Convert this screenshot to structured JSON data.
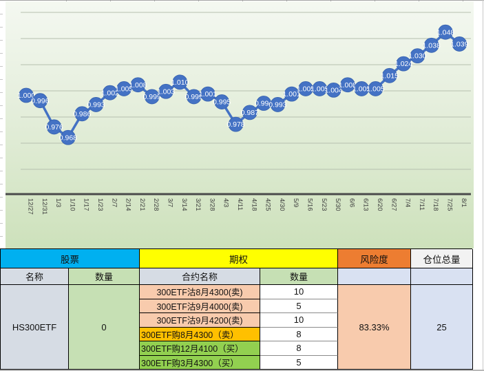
{
  "chart_data": {
    "type": "line",
    "title": "",
    "x": [
      "12/27",
      "12/31",
      "1/3",
      "1/10",
      "1/17",
      "1/23",
      "2/7",
      "2/14",
      "2/21",
      "2/28",
      "3/7",
      "3/14",
      "3/21",
      "3/28",
      "4/3",
      "4/11",
      "4/18",
      "4/25",
      "4/30",
      "5/9",
      "5/16",
      "5/23",
      "5/30",
      "6/6",
      "6/13",
      "6/20",
      "6/27",
      "7/4",
      "7/11",
      "7/18",
      "7/25",
      "8/1"
    ],
    "values": [
      1.0,
      0.996,
      0.976,
      0.968,
      0.986,
      0.993,
      1.002,
      1.005,
      1.008,
      0.999,
      1.003,
      1.01,
      0.999,
      1.001,
      0.995,
      0.978,
      0.987,
      0.994,
      0.993,
      1.001,
      1.005,
      1.005,
      1.004,
      1.008,
      1.005,
      1.005,
      1.015,
      1.024,
      1.03,
      1.038,
      1.048,
      1.039
    ],
    "point_labels": "on-marker",
    "ylim": [
      0.925,
      1.063
    ],
    "grid": "horizontal",
    "legend": "none",
    "line_color": "#4472C4",
    "marker_color": "#4472C4",
    "marker_edge_color": "#3561ae",
    "label_text_color": "#FFFFFF",
    "gridline_color": "#b6bfae",
    "axis_line_color": "#4a4a4a",
    "tick_label_color": "#3d3d3d"
  },
  "table": {
    "header": {
      "stock": "股票",
      "option": "期权",
      "risk": "风险度",
      "position_total": "仓位总量"
    },
    "subheader": {
      "name": "名称",
      "qty": "数量",
      "contract_name": "合约名称",
      "contract_qty": "数量"
    },
    "stock": {
      "name": "HS300ETF",
      "qty": "0"
    },
    "contracts": [
      {
        "name": "300ETF沽8月4300(卖)",
        "qty": "10",
        "bg": "peach",
        "align": "center"
      },
      {
        "name": "300ETF沽9月4000(卖)",
        "qty": "5",
        "bg": "peach",
        "align": "center"
      },
      {
        "name": "300ETF沽9月4200(卖)",
        "qty": "10",
        "bg": "peach",
        "align": "center"
      },
      {
        "name": "300ETF购8月4300（卖）",
        "qty": "8",
        "bg": "amber",
        "align": "left"
      },
      {
        "name": "300ETF购12月4100（买）",
        "qty": "8",
        "bg": "green",
        "align": "left"
      },
      {
        "name": "300ETF购3月4300（买）",
        "qty": "5",
        "bg": "green",
        "align": "left"
      }
    ],
    "risk_value": "83.33%",
    "position_total_value": "25"
  },
  "colors": {
    "stock_header_bg": "#00B0F0",
    "option_header_bg": "#FFFF00",
    "risk_header_bg": "#ED7D31",
    "position_header_bg": "#F2F2F2",
    "name_cell_bg": "#D6DCE4",
    "qty_cell_bg": "#C6E0B4",
    "lavender_bg": "#D9E1F2",
    "peach_bg": "#F8CBAD",
    "amber_bg": "#FFC000",
    "green_bg": "#92D050",
    "chart_bg_top": "#f4f8f1",
    "chart_bg_bottom": "#cde1bb"
  }
}
